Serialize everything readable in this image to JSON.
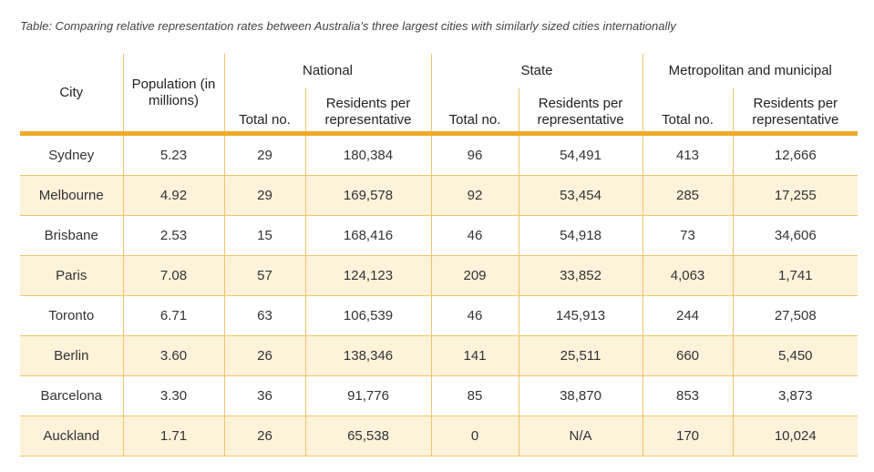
{
  "caption": "Table: Comparing relative representation rates between Australia's three largest cities with similarly sized cities internationally",
  "headers": {
    "city": "City",
    "population": "Population (in millions)",
    "national": "National",
    "state": "State",
    "metro": "Metropolitan and municipal",
    "total_no": "Total no.",
    "residents_per_rep": "Residents per representative"
  },
  "rows": [
    {
      "city": "Sydney",
      "population": "5.23",
      "nat_total": "29",
      "nat_res": "180,384",
      "state_total": "96",
      "state_res": "54,491",
      "metro_total": "413",
      "metro_res": "12,666"
    },
    {
      "city": "Melbourne",
      "population": "4.92",
      "nat_total": "29",
      "nat_res": "169,578",
      "state_total": "92",
      "state_res": "53,454",
      "metro_total": "285",
      "metro_res": "17,255"
    },
    {
      "city": "Brisbane",
      "population": "2.53",
      "nat_total": "15",
      "nat_res": "168,416",
      "state_total": "46",
      "state_res": "54,918",
      "metro_total": "73",
      "metro_res": "34,606"
    },
    {
      "city": "Paris",
      "population": "7.08",
      "nat_total": "57",
      "nat_res": "124,123",
      "state_total": "209",
      "state_res": "33,852",
      "metro_total": "4,063",
      "metro_res": "1,741"
    },
    {
      "city": "Toronto",
      "population": "6.71",
      "nat_total": "63",
      "nat_res": "106,539",
      "state_total": "46",
      "state_res": "145,913",
      "metro_total": "244",
      "metro_res": "27,508"
    },
    {
      "city": "Berlin",
      "population": "3.60",
      "nat_total": "26",
      "nat_res": "138,346",
      "state_total": "141",
      "state_res": "25,511",
      "metro_total": "660",
      "metro_res": "5,450"
    },
    {
      "city": "Barcelona",
      "population": "3.30",
      "nat_total": "36",
      "nat_res": "91,776",
      "state_total": "85",
      "state_res": "38,870",
      "metro_total": "853",
      "metro_res": "3,873"
    },
    {
      "city": "Auckland",
      "population": "1.71",
      "nat_total": "26",
      "nat_res": "65,538",
      "state_total": "0",
      "state_res": "N/A",
      "metro_total": "170",
      "metro_res": "10,024"
    }
  ]
}
